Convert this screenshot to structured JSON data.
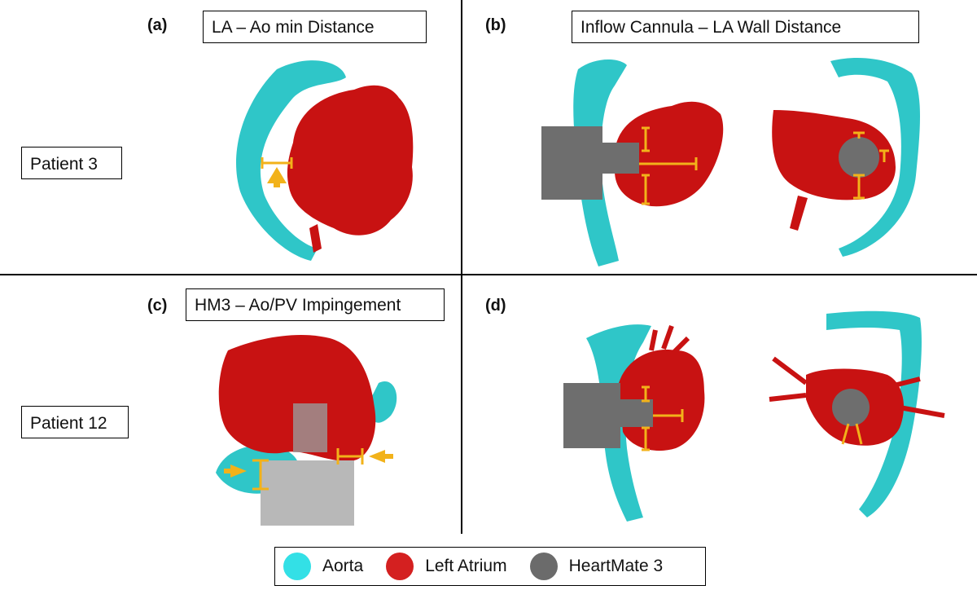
{
  "panels": {
    "a": {
      "letter": "(a)",
      "title": "LA – Ao min Distance"
    },
    "b": {
      "letter": "(b)",
      "title": "Inflow Cannula – LA Wall Distance"
    },
    "c": {
      "letter": "(c)",
      "title": "HM3 – Ao/PV Impingement"
    },
    "d": {
      "letter": "(d)",
      "title": ""
    }
  },
  "rows": {
    "top": "Patient 3",
    "bottom": "Patient 12"
  },
  "legend": [
    {
      "label": "Aorta",
      "color": "#33e0e6"
    },
    {
      "label": "Left Atrium",
      "color": "#d42020"
    },
    {
      "label": "HeartMate 3",
      "color": "#6b6b6b"
    }
  ],
  "colors": {
    "aorta": "#2fc6c8",
    "atrium": "#c81212",
    "device": "#6e6e6e",
    "device_light": "#b8b8b8",
    "measure": "#f2b21a"
  }
}
